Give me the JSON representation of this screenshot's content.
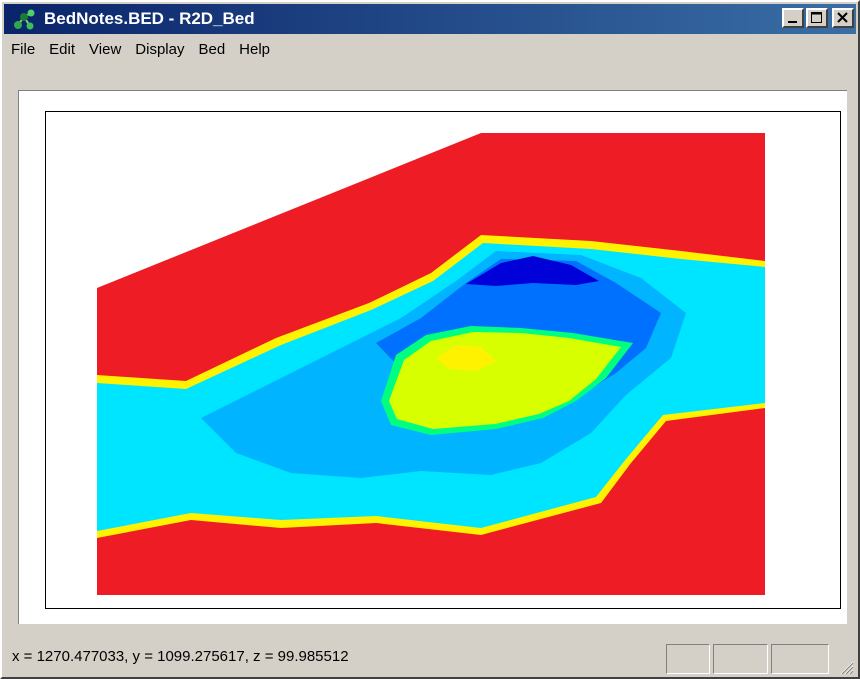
{
  "window": {
    "title": "BedNotes.BED - R2D_Bed",
    "icon": "app-molecule-icon",
    "controls": [
      "minimize-icon",
      "maximize-icon",
      "close-icon"
    ]
  },
  "menu": [
    "File",
    "Edit",
    "View",
    "Display",
    "Bed",
    "Help"
  ],
  "plot": {
    "type": "filled-contour",
    "colors": {
      "red": "#ee1c25",
      "cyan": "#00e5ff",
      "light_blue": "#00b4ff",
      "blue": "#0070ff",
      "dark_blue": "#0000d8",
      "yellow": "#fff200",
      "lime": "#d8ff00",
      "green": "#00ff80"
    }
  },
  "status": {
    "coords": "x = 1270.477033, y = 1099.275617, z = 99.985512"
  }
}
